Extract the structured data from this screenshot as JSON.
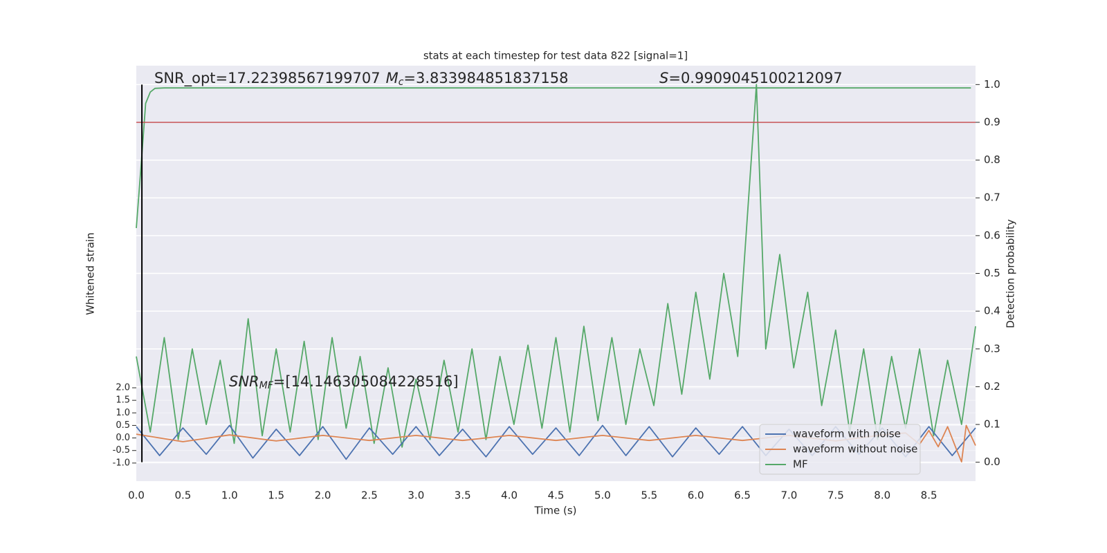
{
  "chart_data": {
    "type": "line",
    "title": "stats at each timestep for test data 822 [signal=1]",
    "x_label": "Time (s)",
    "y_label": "Whitened strain",
    "y2_label": "Detection probability",
    "xlim": [
      0,
      9
    ],
    "ylim": [
      -1.72,
      14.84
    ],
    "y2lim": [
      -0.05,
      1.05
    ],
    "xticks": [
      {
        "value": 0,
        "label": "0.0"
      },
      {
        "value": 0.5,
        "label": "0.5"
      },
      {
        "value": 1,
        "label": "1.0"
      },
      {
        "value": 1.5,
        "label": "1.5"
      },
      {
        "value": 2,
        "label": "2.0"
      },
      {
        "value": 2.5,
        "label": "2.5"
      },
      {
        "value": 3,
        "label": "3.0"
      },
      {
        "value": 3.5,
        "label": "3.5"
      },
      {
        "value": 4,
        "label": "4.0"
      },
      {
        "value": 4.5,
        "label": "4.5"
      },
      {
        "value": 5,
        "label": "5.0"
      },
      {
        "value": 5.5,
        "label": "5.5"
      },
      {
        "value": 6,
        "label": "6.0"
      },
      {
        "value": 6.5,
        "label": "6.5"
      },
      {
        "value": 7,
        "label": "7.0"
      },
      {
        "value": 7.5,
        "label": "7.5"
      },
      {
        "value": 8,
        "label": "8.0"
      },
      {
        "value": 8.5,
        "label": "8.5"
      }
    ],
    "yticks": [
      {
        "value": -1,
        "label": "-1.0"
      },
      {
        "value": -0.5,
        "label": "-0.5"
      },
      {
        "value": 0,
        "label": "0.0"
      },
      {
        "value": 0.5,
        "label": "0.5"
      },
      {
        "value": 1,
        "label": "1.0"
      },
      {
        "value": 1.5,
        "label": "1.5"
      },
      {
        "value": 2,
        "label": "2.0"
      }
    ],
    "y2ticks": [
      {
        "value": 0,
        "label": "0.0"
      },
      {
        "value": 0.1,
        "label": "0.1"
      },
      {
        "value": 0.2,
        "label": "0.2"
      },
      {
        "value": 0.3,
        "label": "0.3"
      },
      {
        "value": 0.4,
        "label": "0.4"
      },
      {
        "value": 0.5,
        "label": "0.5"
      },
      {
        "value": 0.6,
        "label": "0.6"
      },
      {
        "value": 0.7,
        "label": "0.7"
      },
      {
        "value": 0.8,
        "label": "0.8"
      },
      {
        "value": 0.9,
        "label": "0.9"
      },
      {
        "value": 1,
        "label": "1.0"
      }
    ],
    "grid": true,
    "legend": "lower right",
    "series": [
      {
        "name": "MF",
        "color": "#55a868",
        "axis": "y2",
        "x": [
          0,
          0.15,
          0.3,
          0.45,
          0.6,
          0.75,
          0.9,
          1.05,
          1.2,
          1.35,
          1.5,
          1.65,
          1.8,
          1.95,
          2.1,
          2.25,
          2.4,
          2.55,
          2.7,
          2.85,
          3.0,
          3.15,
          3.3,
          3.45,
          3.6,
          3.75,
          3.9,
          4.05,
          4.2,
          4.35,
          4.5,
          4.65,
          4.8,
          4.95,
          5.1,
          5.25,
          5.4,
          5.55,
          5.7,
          5.85,
          6.0,
          6.15,
          6.3,
          6.45,
          6.65,
          6.75,
          6.9,
          7.05,
          7.2,
          7.35,
          7.5,
          7.65,
          7.8,
          7.95,
          8.1,
          8.25,
          8.4,
          8.55,
          8.7,
          8.85,
          9.0
        ],
        "values": [
          0.28,
          0.08,
          0.33,
          0.06,
          0.3,
          0.1,
          0.27,
          0.05,
          0.38,
          0.07,
          0.3,
          0.08,
          0.32,
          0.06,
          0.33,
          0.09,
          0.28,
          0.05,
          0.25,
          0.04,
          0.22,
          0.06,
          0.27,
          0.08,
          0.3,
          0.06,
          0.28,
          0.1,
          0.31,
          0.09,
          0.33,
          0.08,
          0.36,
          0.11,
          0.33,
          0.1,
          0.3,
          0.15,
          0.42,
          0.18,
          0.45,
          0.22,
          0.5,
          0.28,
          1.0,
          0.3,
          0.55,
          0.25,
          0.45,
          0.15,
          0.35,
          0.08,
          0.3,
          0.06,
          0.28,
          0.09,
          0.3,
          0.07,
          0.27,
          0.1,
          0.36
        ]
      },
      {
        "name": "waveform with noise",
        "color": "#4c72b0",
        "x": [
          0,
          0.25,
          0.5,
          0.75,
          1,
          1.25,
          1.5,
          1.75,
          2,
          2.25,
          2.5,
          2.75,
          3,
          3.25,
          3.5,
          3.75,
          4,
          4.25,
          4.5,
          4.75,
          5,
          5.25,
          5.5,
          5.75,
          6,
          6.25,
          6.5,
          6.75,
          7,
          7.25,
          7.5,
          7.75,
          8,
          8.25,
          8.5,
          8.75,
          9
        ],
        "values": [
          0.45,
          -0.7,
          0.4,
          -0.65,
          0.5,
          -0.8,
          0.35,
          -0.7,
          0.45,
          -0.85,
          0.4,
          -0.65,
          0.45,
          -0.7,
          0.35,
          -0.75,
          0.45,
          -0.65,
          0.4,
          -0.7,
          0.5,
          -0.7,
          0.45,
          -0.75,
          0.4,
          -0.65,
          0.45,
          -0.7,
          0.35,
          -0.7,
          0.45,
          -0.65,
          0.4,
          -0.75,
          0.45,
          -0.7,
          0.4
        ]
      },
      {
        "name": "waveform without noise",
        "color": "#dd8452",
        "x": [
          0,
          0.5,
          1,
          1.5,
          2,
          2.5,
          3,
          3.5,
          4,
          4.5,
          5,
          5.5,
          6,
          6.5,
          7,
          7.5,
          8,
          8.25,
          8.4,
          8.5,
          8.6,
          8.7,
          8.8,
          8.85,
          8.9,
          9.0
        ],
        "values": [
          0.15,
          -0.15,
          0.12,
          -0.12,
          0.1,
          -0.1,
          0.1,
          -0.1,
          0.1,
          -0.1,
          0.1,
          -0.1,
          0.1,
          -0.1,
          0.1,
          -0.12,
          0.12,
          0.2,
          -0.25,
          0.3,
          -0.35,
          0.45,
          -0.5,
          -0.95,
          0.5,
          -0.3
        ]
      },
      {
        "color": "#55a868",
        "axis": "y2",
        "x": [
          0,
          0.05,
          0.1,
          0.15,
          0.2,
          0.3,
          0.5,
          8.95
        ],
        "values": [
          0.62,
          0.78,
          0.95,
          0.98,
          0.99,
          0.991,
          0.991,
          0.991
        ]
      }
    ],
    "hline": {
      "value": 0.9,
      "color": "#c44e52",
      "axis": "y2"
    },
    "vline": {
      "value": 0.06,
      "color": "#000000"
    },
    "annotations": [
      {
        "text": "SNR_opt=17.22398567199707"
      },
      {
        "symbol": "M",
        "sub": "c",
        "text": "=3.833984851837158"
      },
      {
        "symbol": "S",
        "text": "=0.9909045100212097"
      },
      {
        "symbol": "SNR",
        "sub": "MF",
        "text": "=[14.146305084228516]"
      }
    ]
  }
}
